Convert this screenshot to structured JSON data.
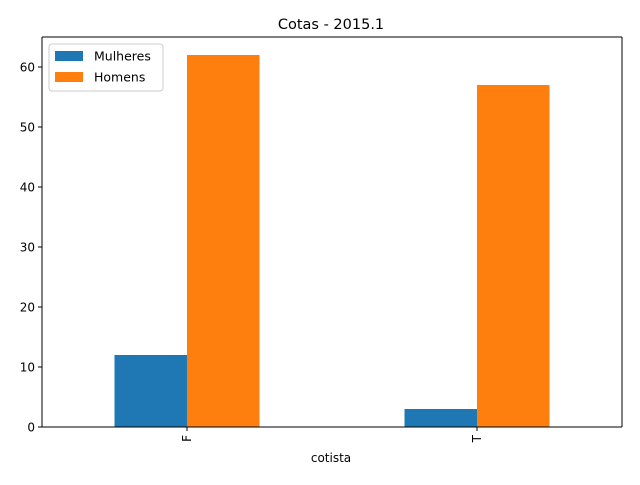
{
  "chart_data": {
    "type": "bar",
    "title": "Cotas - 2015.1",
    "xlabel": "cotista",
    "ylabel": "",
    "categories": [
      "F",
      "T"
    ],
    "series": [
      {
        "name": "Mulheres",
        "values": [
          12,
          3
        ],
        "color": "#1f77b4"
      },
      {
        "name": "Homens",
        "values": [
          62,
          57
        ],
        "color": "#ff7f0e"
      }
    ],
    "ylim": [
      0,
      65
    ],
    "yticks": [
      0,
      10,
      20,
      30,
      40,
      50,
      60
    ],
    "grid": false,
    "legend_position": "top-left"
  }
}
